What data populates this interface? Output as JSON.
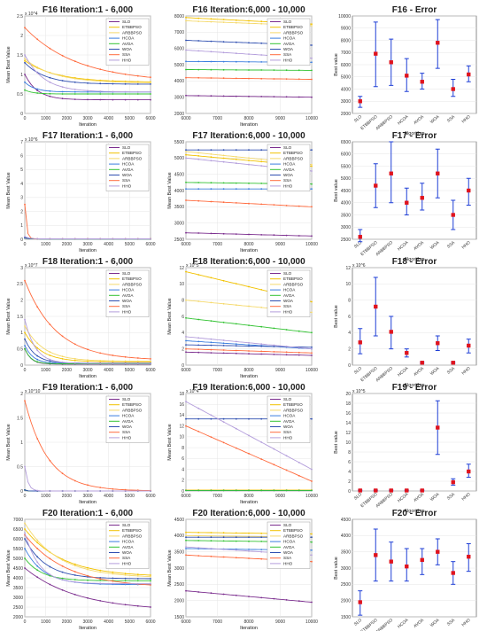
{
  "figure": {
    "legend_entries": [
      "SLO",
      "ETBBPSO",
      "ARBBPSO",
      "HCOA",
      "AVOA",
      "WOA",
      "SSA",
      "HHO"
    ],
    "colors": [
      "#7b2d8e",
      "#f2c200",
      "#f5d96b",
      "#3a7dde",
      "#32c232",
      "#2f4fb0",
      "#ff6a3d",
      "#b39ddb"
    ],
    "error_xlabel": "Algorithm",
    "conv_xlabel": "Iteration",
    "conv_ylabel": "Mean Best Value",
    "error_ylabel": "Best value"
  },
  "chart_data": [
    {
      "type": "line",
      "title": "F16  Iteration:1 - 6,000",
      "xlabel": "Iteration",
      "ylabel": "Mean Best Value",
      "exponent": "x 10^4",
      "xlim": [
        0,
        6000
      ],
      "ylim": [
        0,
        2.5
      ],
      "xticks": [
        "0",
        "1000",
        "2000",
        "3000",
        "4000",
        "5000",
        "6000"
      ],
      "yticks": [
        "0",
        "0.5",
        "1",
        "1.5",
        "2",
        "2.5"
      ],
      "series": [
        {
          "name": "SLO",
          "start": 1.0,
          "end": 0.35,
          "decay": 600
        },
        {
          "name": "ETBBPSO",
          "start": 1.35,
          "end": 0.8,
          "decay": 1500
        },
        {
          "name": "ARBBPSO",
          "start": 1.4,
          "end": 0.78,
          "decay": 1400
        },
        {
          "name": "HCOA",
          "start": 0.8,
          "end": 0.55,
          "decay": 500
        },
        {
          "name": "AVOA",
          "start": 0.6,
          "end": 0.5,
          "decay": 400
        },
        {
          "name": "WOA",
          "start": 1.3,
          "end": 0.75,
          "decay": 1000
        },
        {
          "name": "SSA",
          "start": 2.2,
          "end": 0.8,
          "decay": 2500
        },
        {
          "name": "HHO",
          "start": 1.5,
          "end": 0.55,
          "decay": 900
        }
      ]
    },
    {
      "type": "line",
      "title": "F16  Iteration:6,000 - 10,000",
      "xlabel": "Iteration",
      "ylabel": "",
      "exponent": "",
      "xlim": [
        6000,
        10000
      ],
      "ylim": [
        2000,
        8000
      ],
      "xticks": [
        "6000",
        "7000",
        "8000",
        "9000",
        "10000"
      ],
      "yticks": [
        "2000",
        "3000",
        "4000",
        "5000",
        "6000",
        "7000",
        "8000"
      ],
      "series": [
        {
          "name": "SLO",
          "start": 3100,
          "end": 3000
        },
        {
          "name": "ETBBPSO",
          "start": 7900,
          "end": 7500
        },
        {
          "name": "ARBBPSO",
          "start": 7700,
          "end": 7400
        },
        {
          "name": "HCOA",
          "start": 5200,
          "end": 5150
        },
        {
          "name": "AVOA",
          "start": 4700,
          "end": 4650
        },
        {
          "name": "WOA",
          "start": 6500,
          "end": 6200
        },
        {
          "name": "SSA",
          "start": 4200,
          "end": 4100
        },
        {
          "name": "HHO",
          "start": 5900,
          "end": 5400
        }
      ]
    },
    {
      "type": "error",
      "title": "F16 - Error",
      "xlabel": "Algorithm",
      "ylabel": "Best value",
      "ylim": [
        2000,
        10000
      ],
      "yticks": [
        "2000",
        "3000",
        "4000",
        "5000",
        "6000",
        "7000",
        "8000",
        "9000",
        "10000"
      ],
      "categories": [
        "SLO",
        "ETBBPSO",
        "ARBBPSO",
        "HCOA",
        "AVOA",
        "WOA",
        "SSA",
        "HHO"
      ],
      "mean": [
        3000,
        6900,
        6200,
        5100,
        4600,
        7800,
        4000,
        5200
      ],
      "low": [
        2500,
        4200,
        4300,
        3800,
        4000,
        5700,
        3400,
        4600
      ],
      "high": [
        3400,
        9500,
        8100,
        6500,
        5300,
        9700,
        4800,
        5900
      ]
    },
    {
      "type": "line",
      "title": "F17  Iteration:1 - 6,000",
      "xlabel": "Iteration",
      "ylabel": "Mean Best Value",
      "exponent": "x 10^6",
      "xlim": [
        0,
        6000
      ],
      "ylim": [
        0,
        7
      ],
      "xticks": [
        "0",
        "1000",
        "2000",
        "3000",
        "4000",
        "5000",
        "6000"
      ],
      "yticks": [
        "0",
        "1",
        "2",
        "3",
        "4",
        "5",
        "6",
        "7"
      ],
      "series": [
        {
          "name": "SLO",
          "start": 0.1,
          "end": 0.02,
          "decay": 200
        },
        {
          "name": "ETBBPSO",
          "start": 0.1,
          "end": 0.03,
          "decay": 200
        },
        {
          "name": "ARBBPSO",
          "start": 0.1,
          "end": 0.03,
          "decay": 200
        },
        {
          "name": "HCOA",
          "start": 0.1,
          "end": 0.02,
          "decay": 200
        },
        {
          "name": "AVOA",
          "start": 0.1,
          "end": 0.02,
          "decay": 200
        },
        {
          "name": "WOA",
          "start": 0.1,
          "end": 0.03,
          "decay": 200
        },
        {
          "name": "SSA",
          "start": 2.5,
          "end": 0.03,
          "decay": 80
        },
        {
          "name": "HHO",
          "start": 0.2,
          "end": 0.03,
          "decay": 200
        }
      ]
    },
    {
      "type": "line",
      "title": "F17  Iteration:6,000 - 10,000",
      "xlabel": "Iteration",
      "ylabel": "Mean Best Value",
      "exponent": "",
      "xlim": [
        6000,
        10000
      ],
      "ylim": [
        2500,
        5500
      ],
      "xticks": [
        "6000",
        "7000",
        "8000",
        "9000",
        "10000"
      ],
      "yticks": [
        "2500",
        "3000",
        "3500",
        "4000",
        "4500",
        "5000",
        "5500"
      ],
      "series": [
        {
          "name": "SLO",
          "start": 2700,
          "end": 2600
        },
        {
          "name": "ETBBPSO",
          "start": 5100,
          "end": 4750
        },
        {
          "name": "ARBBPSO",
          "start": 5200,
          "end": 4800
        },
        {
          "name": "HCOA",
          "start": 4050,
          "end": 4050
        },
        {
          "name": "AVOA",
          "start": 4250,
          "end": 4200
        },
        {
          "name": "WOA",
          "start": 5250,
          "end": 5250
        },
        {
          "name": "SSA",
          "start": 3700,
          "end": 3500
        },
        {
          "name": "HHO",
          "start": 5000,
          "end": 4600
        }
      ]
    },
    {
      "type": "error",
      "title": "F17 - Error",
      "xlabel": "Algorithm",
      "ylabel": "Best value",
      "ylim": [
        2500,
        6500
      ],
      "yticks": [
        "2500",
        "3000",
        "3500",
        "4000",
        "4500",
        "5000",
        "5500",
        "6000",
        "6500"
      ],
      "categories": [
        "SLO",
        "ETBBPSO",
        "ARBBPSO",
        "HCOA",
        "AVOA",
        "WOA",
        "SSA",
        "HHO"
      ],
      "mean": [
        2600,
        4700,
        5200,
        4000,
        4200,
        5200,
        3500,
        4500
      ],
      "low": [
        2400,
        3800,
        4000,
        3500,
        3700,
        4200,
        2900,
        3900
      ],
      "high": [
        2900,
        5600,
        6500,
        4600,
        4800,
        6200,
        4100,
        5000
      ]
    },
    {
      "type": "line",
      "title": "F18  Iteration:1 - 6,000",
      "xlabel": "Iteration",
      "ylabel": "Mean Best Value",
      "exponent": "x 10^7",
      "xlim": [
        0,
        6000
      ],
      "ylim": [
        0,
        3
      ],
      "xticks": [
        "0",
        "1000",
        "2000",
        "3000",
        "4000",
        "5000",
        "6000"
      ],
      "yticks": [
        "0",
        "0.5",
        "1",
        "1.5",
        "2",
        "2.5",
        "3"
      ],
      "series": [
        {
          "name": "SLO",
          "start": 0.5,
          "end": 0.03,
          "decay": 300
        },
        {
          "name": "ETBBPSO",
          "start": 1.0,
          "end": 0.1,
          "decay": 800
        },
        {
          "name": "ARBBPSO",
          "start": 1.2,
          "end": 0.12,
          "decay": 900
        },
        {
          "name": "HCOA",
          "start": 0.6,
          "end": 0.05,
          "decay": 400
        },
        {
          "name": "AVOA",
          "start": 0.5,
          "end": 0.04,
          "decay": 300
        },
        {
          "name": "WOA",
          "start": 0.8,
          "end": 0.06,
          "decay": 500
        },
        {
          "name": "SSA",
          "start": 2.6,
          "end": 0.15,
          "decay": 1500
        },
        {
          "name": "HHO",
          "start": 1.4,
          "end": 0.05,
          "decay": 500
        }
      ]
    },
    {
      "type": "line",
      "title": "F18  Iteration:6,000 - 10,000",
      "xlabel": "Iteration",
      "ylabel": "Mean Best Value",
      "exponent": "x 10^5",
      "xlim": [
        6000,
        10000
      ],
      "ylim": [
        0,
        12
      ],
      "xticks": [
        "6000",
        "7000",
        "8000",
        "9000",
        "10000"
      ],
      "yticks": [
        "0",
        "2",
        "4",
        "6",
        "8",
        "10",
        "12"
      ],
      "series": [
        {
          "name": "SLO",
          "start": 1.6,
          "end": 1.2
        },
        {
          "name": "ETBBPSO",
          "start": 11.5,
          "end": 7.8
        },
        {
          "name": "ARBBPSO",
          "start": 8.0,
          "end": 6.5
        },
        {
          "name": "HCOA",
          "start": 3.0,
          "end": 2.0
        },
        {
          "name": "AVOA",
          "start": 5.8,
          "end": 4.0
        },
        {
          "name": "WOA",
          "start": 2.5,
          "end": 2.2
        },
        {
          "name": "SSA",
          "start": 2.0,
          "end": 1.5
        },
        {
          "name": "HHO",
          "start": 3.5,
          "end": 2.0
        }
      ]
    },
    {
      "type": "error",
      "title": "F18 - Error",
      "xlabel": "Algorithm",
      "ylabel": "Best value",
      "exponent": "x 10^6",
      "ylim": [
        0,
        12
      ],
      "yticks": [
        "0",
        "2",
        "4",
        "6",
        "8",
        "10",
        "12"
      ],
      "categories": [
        "SLO",
        "ETBBPSO",
        "ARBBPSO",
        "HCOA",
        "AVOA",
        "WOA",
        "SSA",
        "HHO"
      ],
      "mean": [
        2.8,
        7.2,
        4.1,
        1.5,
        0.3,
        2.7,
        0.3,
        2.4
      ],
      "low": [
        1.4,
        3.6,
        2.0,
        1.0,
        0.2,
        1.8,
        0.2,
        1.5
      ],
      "high": [
        4.5,
        10.8,
        6.0,
        2.0,
        0.4,
        3.6,
        0.4,
        3.2
      ]
    },
    {
      "type": "line",
      "title": "F19  Iteration:1 - 6,000",
      "xlabel": "Iteration",
      "ylabel": "Mean Best Value",
      "exponent": "x 10^10",
      "xlim": [
        0,
        6000
      ],
      "ylim": [
        0,
        2
      ],
      "xticks": [
        "0",
        "1000",
        "2000",
        "3000",
        "4000",
        "5000",
        "6000"
      ],
      "yticks": [
        "0",
        "0.5",
        "1",
        "1.5",
        "2"
      ],
      "series": [
        {
          "name": "SLO",
          "start": 0.02,
          "end": 0.0,
          "decay": 100
        },
        {
          "name": "ETBBPSO",
          "start": 0.02,
          "end": 0.0,
          "decay": 100
        },
        {
          "name": "ARBBPSO",
          "start": 0.02,
          "end": 0.0,
          "decay": 100
        },
        {
          "name": "HCOA",
          "start": 0.02,
          "end": 0.0,
          "decay": 100
        },
        {
          "name": "AVOA",
          "start": 0.02,
          "end": 0.0,
          "decay": 100
        },
        {
          "name": "WOA",
          "start": 0.02,
          "end": 0.0,
          "decay": 100
        },
        {
          "name": "SSA",
          "start": 1.85,
          "end": 0.0,
          "decay": 1100
        },
        {
          "name": "HHO",
          "start": 0.5,
          "end": 0.0,
          "decay": 150
        }
      ]
    },
    {
      "type": "line",
      "title": "F19  Iteration:6,000 - 10,000",
      "xlabel": "Iteration",
      "ylabel": "Mean Best Value",
      "exponent": "x 10^4",
      "xlim": [
        6000,
        10000
      ],
      "ylim": [
        0,
        18
      ],
      "xticks": [
        "6000",
        "7000",
        "8000",
        "9000",
        "10000"
      ],
      "yticks": [
        "0",
        "2",
        "4",
        "6",
        "8",
        "10",
        "12",
        "14",
        "16",
        "18"
      ],
      "series": [
        {
          "name": "SLO",
          "start": 0.1,
          "end": 0.1
        },
        {
          "name": "ETBBPSO",
          "start": 0.2,
          "end": 0.2
        },
        {
          "name": "ARBBPSO",
          "start": 0.2,
          "end": 0.2
        },
        {
          "name": "HCOA",
          "start": 0.1,
          "end": 0.1
        },
        {
          "name": "AVOA",
          "start": 0.1,
          "end": 0.1
        },
        {
          "name": "WOA",
          "start": 13.3,
          "end": 13.3
        },
        {
          "name": "SSA",
          "start": 12.0,
          "end": 1.8
        },
        {
          "name": "HHO",
          "start": 16.5,
          "end": 4.0
        }
      ]
    },
    {
      "type": "error",
      "title": "F19 - Error",
      "xlabel": "Algorithm",
      "ylabel": "Best value",
      "exponent": "x 10^5",
      "ylim": [
        0,
        20
      ],
      "yticks": [
        "0",
        "2",
        "4",
        "6",
        "8",
        "10",
        "12",
        "14",
        "16",
        "18",
        "20"
      ],
      "categories": [
        "SLO",
        "ETBBPSO",
        "ARBBPSO",
        "HCOA",
        "AVOA",
        "WOA",
        "SSA",
        "HHO"
      ],
      "mean": [
        0.1,
        0.1,
        0.1,
        0.1,
        0.1,
        13.0,
        1.8,
        4.0
      ],
      "low": [
        0.0,
        0.0,
        0.0,
        0.0,
        0.0,
        7.5,
        1.2,
        2.8
      ],
      "high": [
        0.2,
        0.2,
        0.2,
        0.2,
        0.2,
        18.5,
        2.5,
        5.5
      ]
    },
    {
      "type": "line",
      "title": "F20  Iteration:1 - 6,000",
      "xlabel": "Iteration",
      "ylabel": "Mean Best Value",
      "exponent": "",
      "xlim": [
        0,
        6000
      ],
      "ylim": [
        2000,
        7000
      ],
      "xticks": [
        "0",
        "1000",
        "2000",
        "3000",
        "4000",
        "5000",
        "6000"
      ],
      "yticks": [
        "2000",
        "2500",
        "3000",
        "3500",
        "4000",
        "4500",
        "5000",
        "5500",
        "6000",
        "6500",
        "7000"
      ],
      "series": [
        {
          "name": "SLO",
          "start": 4500,
          "end": 2300,
          "decay": 2500
        },
        {
          "name": "ETBBPSO",
          "start": 6500,
          "end": 4050,
          "decay": 1800
        },
        {
          "name": "ARBBPSO",
          "start": 6800,
          "end": 4000,
          "decay": 1600
        },
        {
          "name": "HCOA",
          "start": 5500,
          "end": 3650,
          "decay": 900
        },
        {
          "name": "AVOA",
          "start": 5000,
          "end": 3850,
          "decay": 800
        },
        {
          "name": "WOA",
          "start": 6000,
          "end": 3950,
          "decay": 1000
        },
        {
          "name": "SSA",
          "start": 6200,
          "end": 3500,
          "decay": 2000
        },
        {
          "name": "HHO",
          "start": 6300,
          "end": 3700,
          "decay": 700
        }
      ]
    },
    {
      "type": "line",
      "title": "F20  Iteration:6,000 - 10,000",
      "xlabel": "Iteration",
      "ylabel": "Mean Best Value",
      "exponent": "",
      "xlim": [
        6000,
        10000
      ],
      "ylim": [
        1500,
        4500
      ],
      "xticks": [
        "6000",
        "7000",
        "8000",
        "9000",
        "10000"
      ],
      "yticks": [
        "1500",
        "2000",
        "2500",
        "3000",
        "3500",
        "4000",
        "4500"
      ],
      "series": [
        {
          "name": "SLO",
          "start": 2300,
          "end": 1950
        },
        {
          "name": "ETBBPSO",
          "start": 4100,
          "end": 4050
        },
        {
          "name": "ARBBPSO",
          "start": 4000,
          "end": 3950
        },
        {
          "name": "HCOA",
          "start": 3600,
          "end": 3550
        },
        {
          "name": "AVOA",
          "start": 3850,
          "end": 3800
        },
        {
          "name": "WOA",
          "start": 3950,
          "end": 3950
        },
        {
          "name": "SSA",
          "start": 3400,
          "end": 3200
        },
        {
          "name": "HHO",
          "start": 3650,
          "end": 3400
        }
      ]
    },
    {
      "type": "error",
      "title": "F20 - Error",
      "xlabel": "Algorithm",
      "ylabel": "Best value",
      "ylim": [
        1500,
        4500
      ],
      "yticks": [
        "1500",
        "2000",
        "2500",
        "3000",
        "3500",
        "4000",
        "4500"
      ],
      "categories": [
        "SLO",
        "ETBBPSO",
        "ARBBPSO",
        "HCOA",
        "AVOA",
        "WOA",
        "SSA",
        "HHO"
      ],
      "mean": [
        1950,
        3400,
        3200,
        3050,
        3250,
        3500,
        2850,
        3350
      ],
      "low": [
        1550,
        2600,
        2600,
        2600,
        2800,
        3100,
        2500,
        2900
      ],
      "high": [
        2300,
        4200,
        3800,
        3600,
        3600,
        3900,
        3200,
        3750
      ]
    }
  ]
}
